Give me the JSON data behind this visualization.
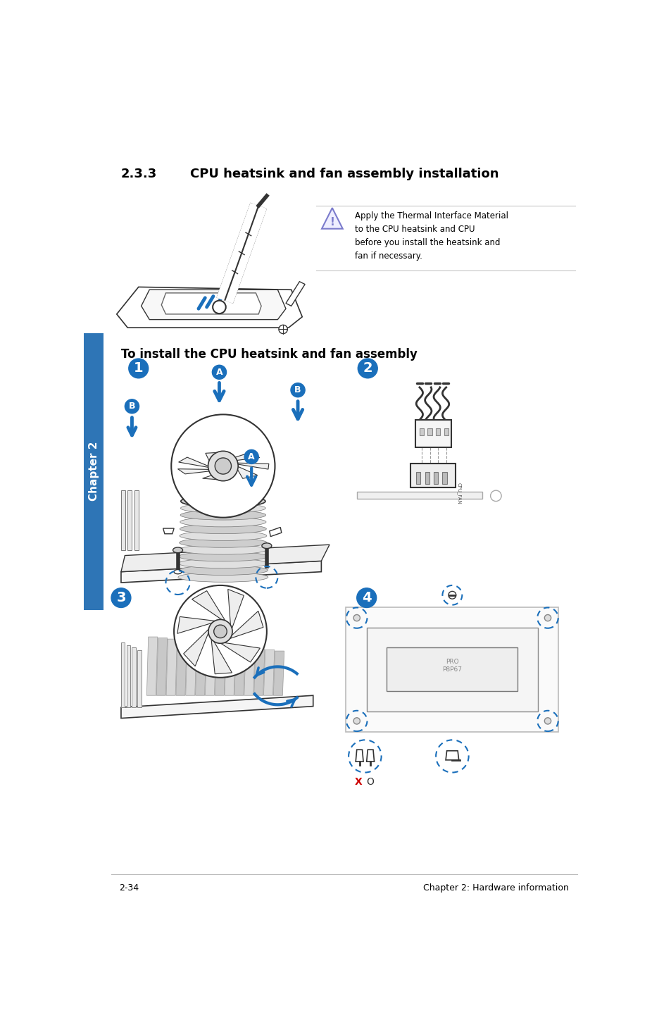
{
  "bg_color": "#ffffff",
  "page_width": 9.54,
  "page_height": 14.38,
  "title_section": "2.3.3",
  "title_text": "CPU heatsink and fan assembly installation",
  "warning_text": "Apply the Thermal Interface Material\nto the CPU heatsink and CPU\nbefore you install the heatsink and\nfan if necessary.",
  "install_heading": "To install the CPU heatsink and fan assembly",
  "footer_left": "2-34",
  "footer_right": "Chapter 2: Hardware information",
  "chapter_tab": "Chapter 2",
  "sidebar_color": "#2e75b6",
  "blue_color": "#1a6fbb",
  "step_blue": "#1a6fbb",
  "warning_triangle_color": "#7b7bcc",
  "warning_triangle_fill": "#eeeeff",
  "red_color": "#cc0000",
  "dashed_circle_color": "#1a6fbb",
  "text_color": "#000000",
  "gray_color": "#888888",
  "light_gray": "#bbbbbb",
  "outline_color": "#333333",
  "title_fontsize": 13,
  "heading_fontsize": 12,
  "footer_fontsize": 9,
  "body_fontsize": 8.5
}
